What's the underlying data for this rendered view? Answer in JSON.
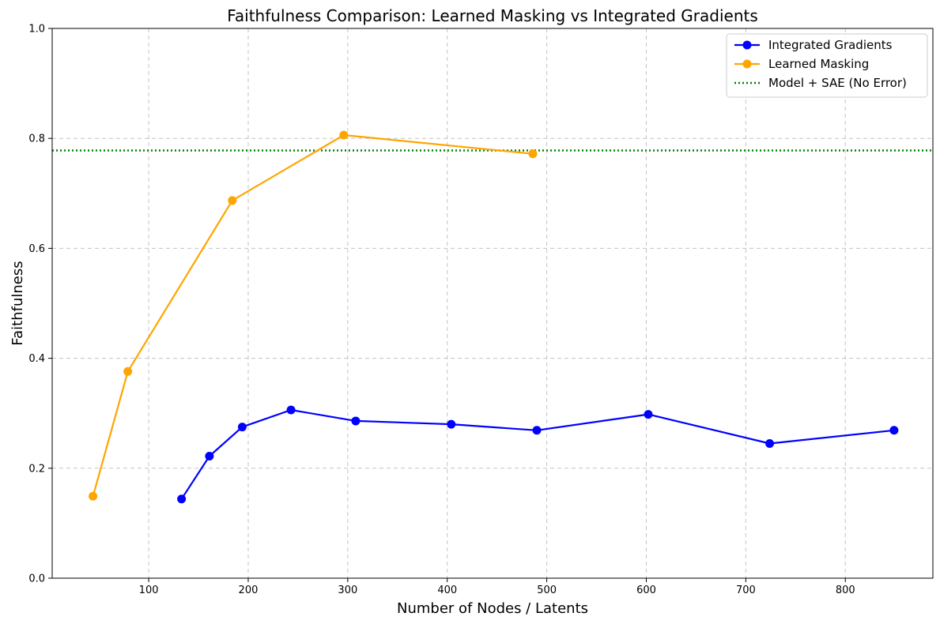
{
  "chart_data": {
    "type": "line",
    "title": "Faithfulness Comparison: Learned Masking vs Integrated Gradients",
    "xlabel": "Number of Nodes / Latents",
    "ylabel": "Faithfulness",
    "xlim": [
      3,
      888
    ],
    "ylim": [
      0,
      1
    ],
    "xticks": [
      100,
      200,
      300,
      400,
      500,
      600,
      700,
      800
    ],
    "yticks": [
      0.0,
      0.2,
      0.4,
      0.6,
      0.8,
      1.0
    ],
    "grid": true,
    "legend_position": "top-right",
    "series": [
      {
        "name": "Integrated Gradients",
        "color": "#0000ff",
        "marker": "circle",
        "x": [
          133,
          161,
          194,
          243,
          308,
          404,
          490,
          602,
          724,
          849
        ],
        "y": [
          0.144,
          0.222,
          0.275,
          0.306,
          0.286,
          0.28,
          0.269,
          0.298,
          0.245,
          0.269
        ]
      },
      {
        "name": "Learned Masking",
        "color": "#ffa500",
        "marker": "circle",
        "x": [
          44,
          79,
          184,
          296,
          486
        ],
        "y": [
          0.149,
          0.376,
          0.687,
          0.806,
          0.772
        ]
      }
    ],
    "reference_lines": [
      {
        "name": "Model + SAE (No Error)",
        "orientation": "horizontal",
        "y": 0.778,
        "color": "#008000",
        "style": "dotted"
      }
    ]
  }
}
